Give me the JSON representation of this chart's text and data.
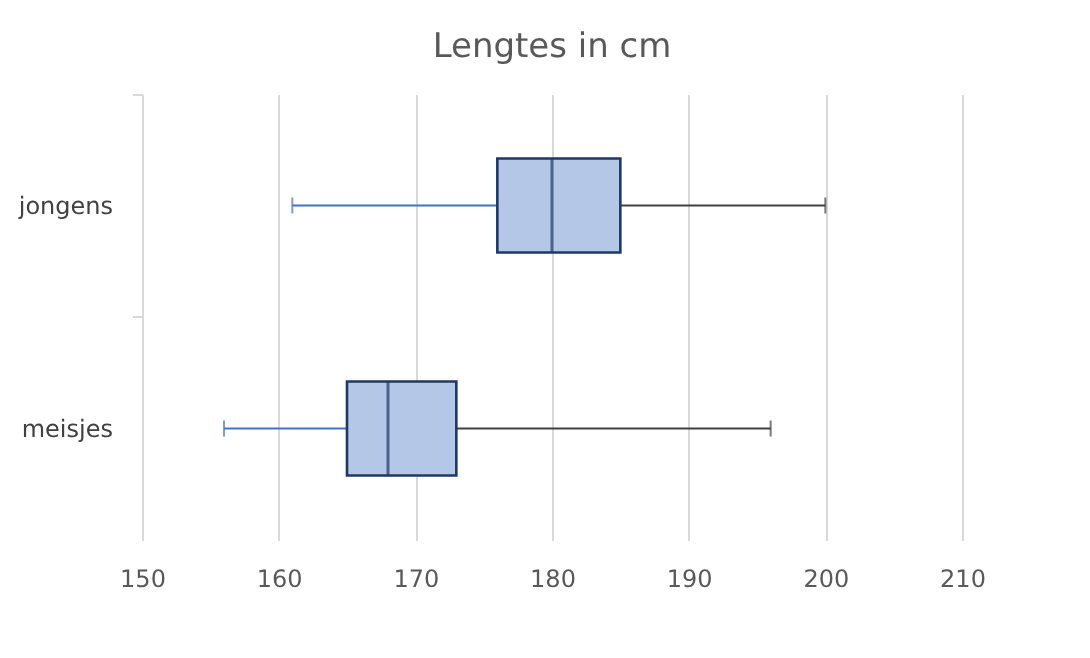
{
  "chart_data": {
    "type": "box",
    "title": "Lengtes in cm",
    "orientation": "horizontal",
    "categories": [
      "jongens",
      "meisjes"
    ],
    "boxes": [
      {
        "low": 161,
        "q1": 176,
        "median": 180,
        "q3": 185,
        "high": 200
      },
      {
        "low": 156,
        "q1": 165,
        "median": 168,
        "q3": 173,
        "high": 196
      }
    ],
    "color": "#b4c7e7",
    "xlim": [
      150,
      210
    ],
    "xticks": [
      150,
      160,
      170,
      180,
      190,
      200,
      210
    ],
    "grid": "x"
  }
}
